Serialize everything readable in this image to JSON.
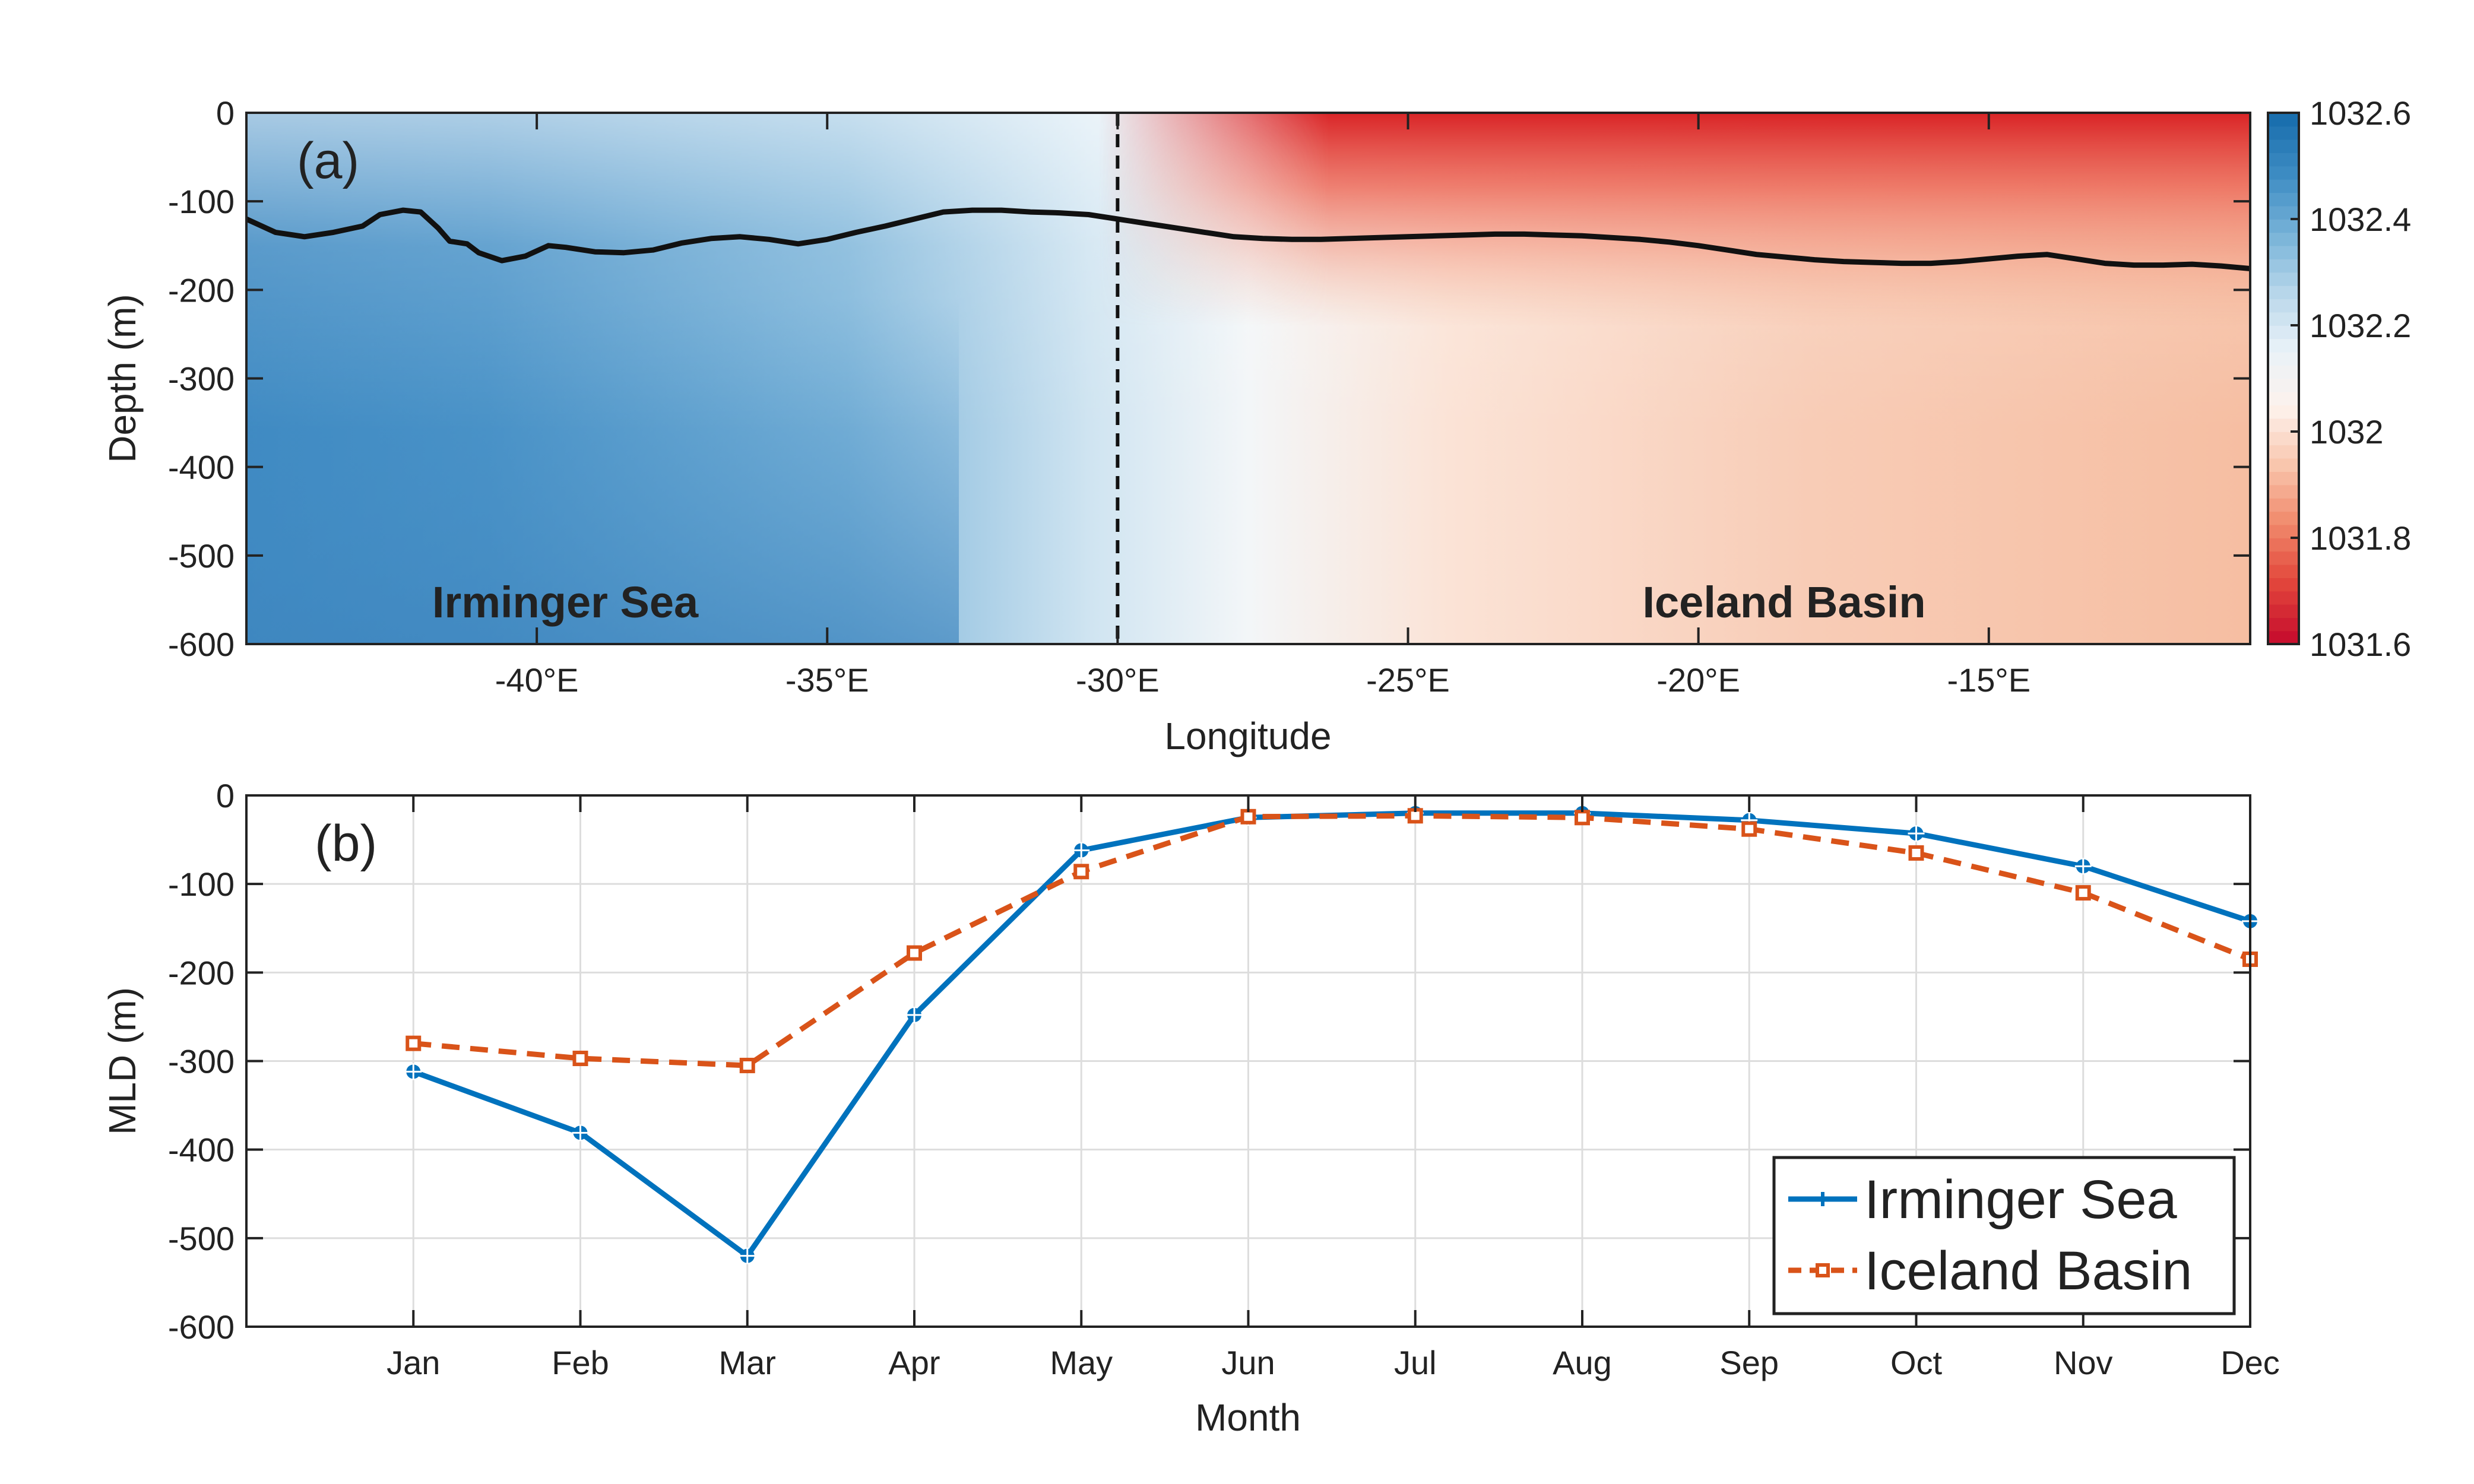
{
  "chart_data": [
    {
      "type": "heatmap",
      "panel_label": "(a)",
      "xlabel": "Longitude",
      "ylabel": "Depth (m)",
      "xlim": [
        -45,
        -10.5
      ],
      "ylim": [
        -600,
        0
      ],
      "x_ticks": [
        -40,
        -35,
        -30,
        -25,
        -20,
        -15
      ],
      "x_tick_labels": [
        "-40°E",
        "-35°E",
        "-30°E",
        "-25°E",
        "-20°E",
        "-15°E"
      ],
      "y_ticks": [
        0,
        -100,
        -200,
        -300,
        -400,
        -500,
        -600
      ],
      "y_tick_labels": [
        "0",
        "-100",
        "-200",
        "-300",
        "-400",
        "-500",
        "-600"
      ],
      "colorbar": {
        "range": [
          1031.6,
          1032.6
        ],
        "ticks": [
          1032.6,
          1032.4,
          1032.2,
          1032,
          1031.8,
          1031.6
        ],
        "tick_labels": [
          "1032.6",
          "1032.4",
          "1032.2",
          "1032",
          "1031.8",
          "1031.6"
        ],
        "colors": [
          "#c8102e",
          "#e3483c",
          "#f08a6c",
          "#f9c6ad",
          "#fdf2ec",
          "#e9f2f8",
          "#b7d6ea",
          "#78b3d8",
          "#3f8dc4",
          "#1a6fae"
        ]
      },
      "divider_x": -30,
      "annotations": [
        "Irminger Sea",
        "Iceland Basin"
      ],
      "mld_line": {
        "x": [
          -45,
          -44.5,
          -44,
          -43.5,
          -43,
          -42.7,
          -42.3,
          -42,
          -41.7,
          -41.5,
          -41.2,
          -41,
          -40.6,
          -40.2,
          -39.8,
          -39.5,
          -39,
          -38.5,
          -38,
          -37.5,
          -37,
          -36.5,
          -36,
          -35.5,
          -35,
          -34.5,
          -34,
          -33.5,
          -33,
          -32.5,
          -32,
          -31.5,
          -31,
          -30.5,
          -30,
          -29.5,
          -29,
          -28.5,
          -28,
          -27.5,
          -27,
          -26.5,
          -26,
          -25.5,
          -25,
          -24.5,
          -24,
          -23.5,
          -23,
          -22.5,
          -22,
          -21.5,
          -21,
          -20.5,
          -20,
          -19.5,
          -19,
          -18.5,
          -18,
          -17.5,
          -17,
          -16.5,
          -16,
          -15.5,
          -15,
          -14.5,
          -14,
          -13.5,
          -13,
          -12.5,
          -12,
          -11.5,
          -11,
          -10.5
        ],
        "y": [
          -120,
          -135,
          -140,
          -135,
          -128,
          -115,
          -110,
          -112,
          -130,
          -145,
          -148,
          -158,
          -167,
          -162,
          -150,
          -152,
          -157,
          -158,
          -155,
          -147,
          -142,
          -140,
          -143,
          -148,
          -143,
          -135,
          -128,
          -120,
          -112,
          -110,
          -110,
          -112,
          -113,
          -115,
          -120,
          -125,
          -130,
          -135,
          -140,
          -142,
          -143,
          -143,
          -142,
          -141,
          -140,
          -139,
          -138,
          -137,
          -137,
          -138,
          -139,
          -141,
          -143,
          -146,
          -150,
          -155,
          -160,
          -163,
          -166,
          -168,
          -169,
          -170,
          -170,
          -168,
          -165,
          -162,
          -160,
          -165,
          -170,
          -172,
          -172,
          -171,
          -173,
          -176
        ]
      }
    },
    {
      "type": "line",
      "panel_label": "(b)",
      "xlabel": "Month",
      "ylabel": "MLD (m)",
      "categories": [
        "Jan",
        "Feb",
        "Mar",
        "Apr",
        "May",
        "Jun",
        "Jul",
        "Aug",
        "Sep",
        "Oct",
        "Nov",
        "Dec"
      ],
      "ylim": [
        -600,
        0
      ],
      "y_ticks": [
        0,
        -100,
        -200,
        -300,
        -400,
        -500,
        -600
      ],
      "y_tick_labels": [
        "0",
        "-100",
        "-200",
        "-300",
        "-400",
        "-500",
        "-600"
      ],
      "grid": true,
      "legend_position": "bottom-right",
      "series": [
        {
          "name": "Irminger Sea",
          "color": "#0072bd",
          "style": "solid",
          "values": [
            -312,
            -381,
            -520,
            -248,
            -62,
            -25,
            -20,
            -20,
            -28,
            -43,
            -80,
            -142
          ]
        },
        {
          "name": "Iceland Basin",
          "color": "#d95319",
          "style": "dashed",
          "values": [
            -280,
            -297,
            -305,
            -178,
            -86,
            -24,
            -23,
            -25,
            -38,
            -65,
            -110,
            -185
          ]
        }
      ]
    }
  ]
}
